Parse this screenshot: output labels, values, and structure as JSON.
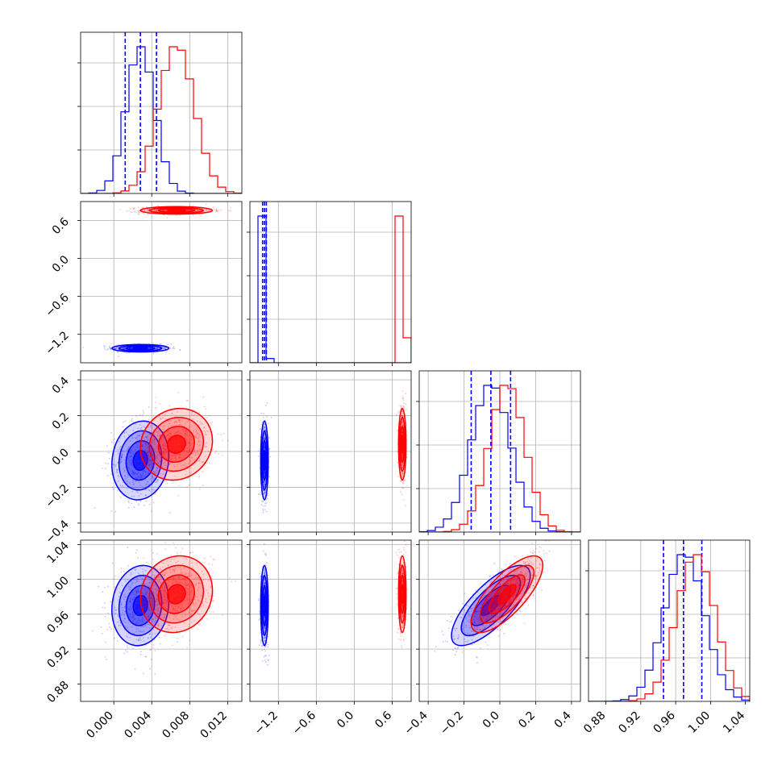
{
  "chart_data": {
    "type": "corner",
    "parameters": 4,
    "colors": {
      "series_a": "#0000ff",
      "series_b": "#ff0000"
    },
    "grid": true,
    "ranges": [
      [
        -0.0035,
        0.0135
      ],
      [
        -1.65,
        0.9
      ],
      [
        -0.45,
        0.45
      ],
      [
        0.86,
        1.045
      ]
    ],
    "tick_labels": [
      [
        "0.000",
        "0.004",
        "0.008",
        "0.012"
      ],
      [
        "−1.2",
        "−0.6",
        "0.0",
        "0.6"
      ],
      [
        "−0.4",
        "−0.2",
        "0.0",
        "0.2",
        "0.4"
      ],
      [
        "0.88",
        "0.92",
        "0.96",
        "1.00",
        "1.04"
      ]
    ],
    "tick_values": [
      [
        0.0,
        0.004,
        0.008,
        0.012
      ],
      [
        -1.2,
        -0.6,
        0.0,
        0.6
      ],
      [
        -0.4,
        -0.2,
        0.0,
        0.2,
        0.4
      ],
      [
        0.88,
        0.92,
        0.96,
        1.0,
        1.04
      ]
    ],
    "series": [
      {
        "color": "#0000ff",
        "means": [
          0.0028,
          -1.42,
          -0.05,
          0.97
        ],
        "stds": [
          0.0015,
          0.03,
          0.11,
          0.023
        ],
        "quantiles": [
          [
            0.0012,
            0.0028,
            0.0045
          ],
          [
            -1.45,
            -1.42,
            -1.39
          ],
          [
            -0.16,
            -0.05,
            0.06
          ],
          [
            0.946,
            0.969,
            0.99
          ]
        ]
      },
      {
        "color": "#ff0000",
        "means": [
          0.0066,
          0.76,
          0.04,
          0.983
        ],
        "stds": [
          0.0019,
          0.03,
          0.1,
          0.022
        ],
        "quantiles": null
      }
    ],
    "correlations": [
      [
        0,
        1,
        0.0
      ],
      [
        0,
        2,
        0.1
      ],
      [
        1,
        2,
        0.0
      ],
      [
        0,
        3,
        0.1
      ],
      [
        1,
        3,
        0.0
      ],
      [
        2,
        3,
        0.75
      ]
    ]
  }
}
